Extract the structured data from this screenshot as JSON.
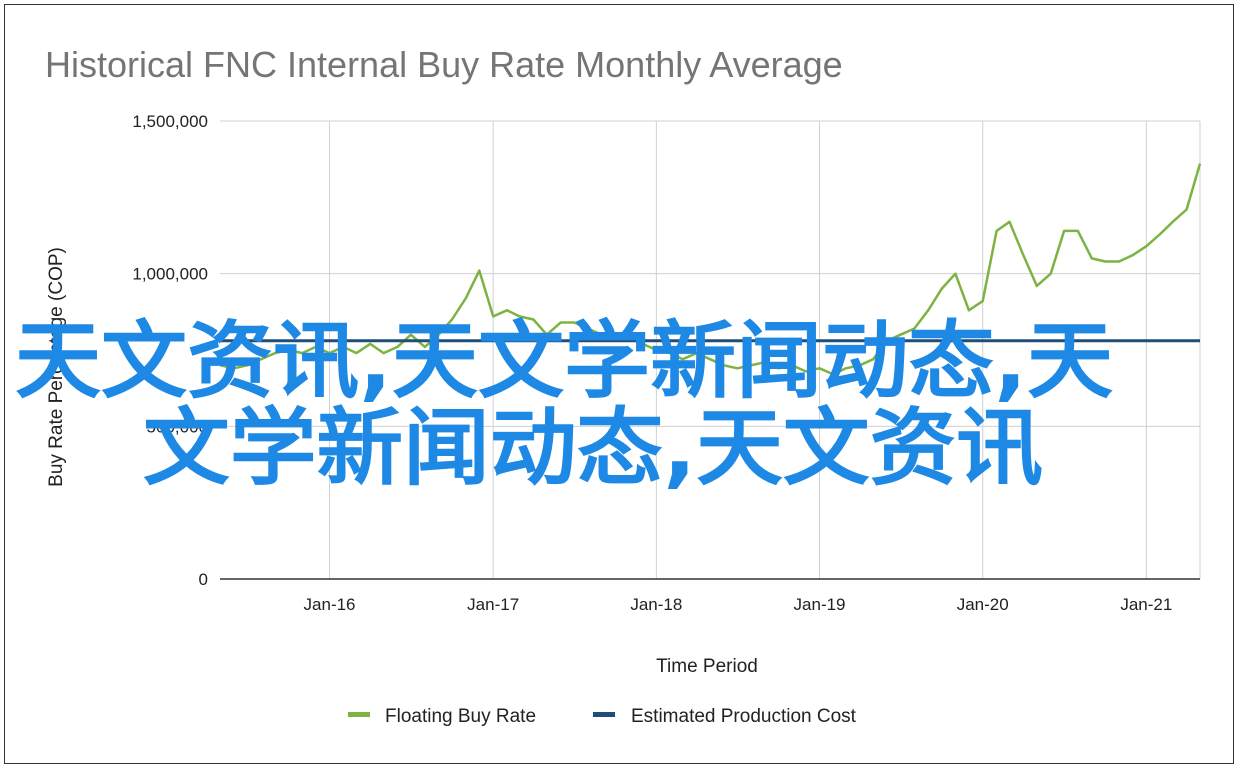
{
  "chart_data": {
    "type": "line",
    "title": "Historical FNC Internal Buy Rate Monthly Average",
    "xlabel": "Time Period",
    "ylabel": "Buy Rate Percentage (COP)",
    "ylim": [
      0,
      1500000
    ],
    "yticks": [
      0,
      500000,
      1000000,
      1500000
    ],
    "ytick_labels": [
      "0",
      "500,000",
      "1,000,000",
      "1,500,000"
    ],
    "xlim": [
      "2015-05-01",
      "2021-05-01"
    ],
    "xticks": [
      "2016-01-01",
      "2017-01-01",
      "2018-01-01",
      "2019-01-01",
      "2020-01-01",
      "2021-01-01"
    ],
    "xtick_labels": [
      "Jan-16",
      "Jan-17",
      "Jan-18",
      "Jan-19",
      "Jan-20",
      "Jan-21"
    ],
    "grid": "vertical and horizontal",
    "legend_position": "bottom",
    "series": [
      {
        "name": "Floating Buy Rate",
        "color": "#7cb342",
        "x": [
          "2015-05-01",
          "2015-06-01",
          "2015-07-01",
          "2015-08-01",
          "2015-09-01",
          "2015-10-01",
          "2015-11-01",
          "2015-12-01",
          "2016-01-01",
          "2016-02-01",
          "2016-03-01",
          "2016-04-01",
          "2016-05-01",
          "2016-06-01",
          "2016-07-01",
          "2016-08-01",
          "2016-09-01",
          "2016-10-01",
          "2016-11-01",
          "2016-12-01",
          "2017-01-01",
          "2017-02-01",
          "2017-03-01",
          "2017-04-01",
          "2017-05-01",
          "2017-06-01",
          "2017-07-01",
          "2017-08-01",
          "2017-09-01",
          "2017-10-01",
          "2017-11-01",
          "2017-12-01",
          "2018-01-01",
          "2018-02-01",
          "2018-03-01",
          "2018-04-01",
          "2018-05-01",
          "2018-06-01",
          "2018-07-01",
          "2018-08-01",
          "2018-09-01",
          "2018-10-01",
          "2018-11-01",
          "2018-12-01",
          "2019-01-01",
          "2019-02-01",
          "2019-03-01",
          "2019-04-01",
          "2019-05-01",
          "2019-06-01",
          "2019-07-01",
          "2019-08-01",
          "2019-09-01",
          "2019-10-01",
          "2019-11-01",
          "2019-12-01",
          "2020-01-01",
          "2020-02-01",
          "2020-03-01",
          "2020-04-01",
          "2020-05-01",
          "2020-06-01",
          "2020-07-01",
          "2020-08-01",
          "2020-09-01",
          "2020-10-01",
          "2020-11-01",
          "2020-12-01",
          "2021-01-01",
          "2021-02-01",
          "2021-03-01",
          "2021-04-01",
          "2021-05-01"
        ],
        "values": [
          700000,
          690000,
          700000,
          720000,
          740000,
          750000,
          740000,
          760000,
          740000,
          760000,
          740000,
          770000,
          740000,
          760000,
          800000,
          760000,
          800000,
          850000,
          920000,
          1010000,
          860000,
          880000,
          860000,
          850000,
          800000,
          840000,
          840000,
          820000,
          800000,
          780000,
          790000,
          770000,
          750000,
          740000,
          720000,
          740000,
          720000,
          700000,
          690000,
          700000,
          710000,
          690000,
          700000,
          680000,
          690000,
          670000,
          690000,
          700000,
          720000,
          780000,
          800000,
          820000,
          880000,
          950000,
          1000000,
          880000,
          910000,
          1140000,
          1170000,
          1060000,
          960000,
          1000000,
          1140000,
          1140000,
          1050000,
          1040000,
          1040000,
          1060000,
          1090000,
          1130000,
          1170000,
          1210000,
          1360000
        ]
      },
      {
        "name": "Estimated Production Cost",
        "color": "#1f4e79",
        "x": [
          "2015-05-01",
          "2021-05-01"
        ],
        "values": [
          780000,
          780000
        ]
      }
    ]
  },
  "overlay": {
    "line1": "天文资讯,天文学新闻动态,天",
    "line2": "文学新闻动态,天文资讯"
  }
}
